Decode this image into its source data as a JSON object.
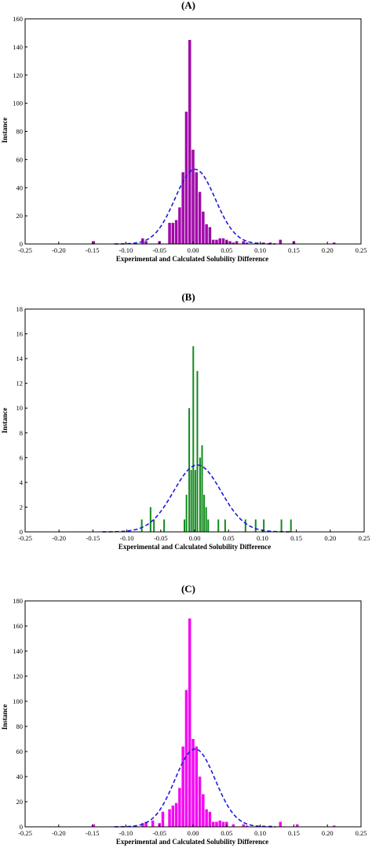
{
  "chart_data": [
    {
      "type": "bar",
      "panel_label": "(A)",
      "xlabel": "Experimental and Calculated Solubility Difference",
      "ylabel": "Instance",
      "xlim": [
        -0.25,
        0.25
      ],
      "ylim": [
        0,
        160
      ],
      "x_ticks": [
        "-0.25",
        "-0.20",
        "-0.15",
        "-0.10",
        "-0.05",
        "0.00",
        "0.05",
        "0.10",
        "0.15",
        "0.20",
        "0.25"
      ],
      "y_ticks": [
        "0",
        "20",
        "40",
        "60",
        "80",
        "100",
        "120",
        "140",
        "160"
      ],
      "bar_color": "#a00aa8",
      "fit_color": "#1a1adc",
      "bin_width": 0.005,
      "bars": [
        {
          "x": -0.148,
          "value": 2
        },
        {
          "x": -0.075,
          "value": 4
        },
        {
          "x": -0.07,
          "value": 2
        },
        {
          "x": -0.05,
          "value": 2
        },
        {
          "x": -0.035,
          "value": 15
        },
        {
          "x": -0.03,
          "value": 15
        },
        {
          "x": -0.025,
          "value": 17
        },
        {
          "x": -0.02,
          "value": 26
        },
        {
          "x": -0.015,
          "value": 51
        },
        {
          "x": -0.01,
          "value": 94
        },
        {
          "x": -0.005,
          "value": 145
        },
        {
          "x": 0.0,
          "value": 67
        },
        {
          "x": 0.005,
          "value": 51
        },
        {
          "x": 0.01,
          "value": 37
        },
        {
          "x": 0.015,
          "value": 23
        },
        {
          "x": 0.02,
          "value": 14
        },
        {
          "x": 0.025,
          "value": 12
        },
        {
          "x": 0.03,
          "value": 3
        },
        {
          "x": 0.035,
          "value": 3
        },
        {
          "x": 0.04,
          "value": 4
        },
        {
          "x": 0.045,
          "value": 4
        },
        {
          "x": 0.05,
          "value": 3
        },
        {
          "x": 0.055,
          "value": 2
        },
        {
          "x": 0.06,
          "value": 1
        },
        {
          "x": 0.065,
          "value": 2
        },
        {
          "x": 0.075,
          "value": 2
        },
        {
          "x": 0.08,
          "value": 1
        },
        {
          "x": 0.095,
          "value": 1
        },
        {
          "x": 0.105,
          "value": 1
        },
        {
          "x": 0.115,
          "value": 1
        },
        {
          "x": 0.13,
          "value": 3
        },
        {
          "x": 0.15,
          "value": 2
        },
        {
          "x": 0.21,
          "value": 1
        }
      ],
      "fit_curve": {
        "style": "dashed",
        "peak": 53,
        "mean": 0.003,
        "sd": 0.03
      }
    },
    {
      "type": "bar",
      "panel_label": "(B)",
      "xlabel": "Experimental and Calculated Solubility Difference",
      "ylabel": "Instance",
      "xlim": [
        -0.25,
        0.25
      ],
      "ylim": [
        0,
        18
      ],
      "x_ticks": [
        "-0.25",
        "-0.20",
        "-0.15",
        "-0.10",
        "-0.05",
        "0.00",
        "0.05",
        "0.10",
        "0.15",
        "0.20",
        "0.25"
      ],
      "y_ticks": [
        "0",
        "2",
        "4",
        "6",
        "8",
        "10",
        "12",
        "14",
        "16",
        "18"
      ],
      "bar_color": "#128a1e",
      "fit_color": "#1a1adc",
      "bin_width": 0.0025,
      "bars": [
        {
          "x": -0.078,
          "value": 1
        },
        {
          "x": -0.065,
          "value": 2
        },
        {
          "x": -0.06,
          "value": 1
        },
        {
          "x": -0.045,
          "value": 1
        },
        {
          "x": -0.015,
          "value": 1
        },
        {
          "x": -0.012,
          "value": 3
        },
        {
          "x": -0.008,
          "value": 10
        },
        {
          "x": -0.005,
          "value": 5
        },
        {
          "x": -0.002,
          "value": 15
        },
        {
          "x": 0.001,
          "value": 5
        },
        {
          "x": 0.004,
          "value": 13
        },
        {
          "x": 0.008,
          "value": 6
        },
        {
          "x": 0.011,
          "value": 7
        },
        {
          "x": 0.014,
          "value": 3
        },
        {
          "x": 0.017,
          "value": 2
        },
        {
          "x": 0.02,
          "value": 1
        },
        {
          "x": 0.035,
          "value": 1
        },
        {
          "x": 0.045,
          "value": 1
        },
        {
          "x": 0.075,
          "value": 1
        },
        {
          "x": 0.09,
          "value": 1
        },
        {
          "x": 0.102,
          "value": 1
        },
        {
          "x": 0.128,
          "value": 1
        },
        {
          "x": 0.142,
          "value": 1
        }
      ],
      "fit_curve": {
        "style": "dashed",
        "peak": 5.4,
        "mean": 0.004,
        "sd": 0.035
      }
    },
    {
      "type": "bar",
      "panel_label": "(C)",
      "xlabel": "Experimental and Calculated Solubility Difference",
      "ylabel": "Instance",
      "xlim": [
        -0.25,
        0.25
      ],
      "ylim": [
        0,
        180
      ],
      "x_ticks": [
        "-0.25",
        "-0.20",
        "-0.15",
        "-0.10",
        "-0.05",
        "0.00",
        "0.05",
        "0.10",
        "0.15",
        "0.20",
        "0.25"
      ],
      "y_ticks": [
        "0",
        "20",
        "40",
        "60",
        "80",
        "100",
        "120",
        "140",
        "160",
        "180"
      ],
      "bar_color": "#f20af2",
      "fit_color": "#1a1adc",
      "bin_width": 0.005,
      "bars": [
        {
          "x": -0.148,
          "value": 2
        },
        {
          "x": -0.075,
          "value": 3
        },
        {
          "x": -0.07,
          "value": 4
        },
        {
          "x": -0.06,
          "value": 5
        },
        {
          "x": -0.05,
          "value": 3
        },
        {
          "x": -0.045,
          "value": 12
        },
        {
          "x": -0.035,
          "value": 14
        },
        {
          "x": -0.03,
          "value": 17
        },
        {
          "x": -0.025,
          "value": 19
        },
        {
          "x": -0.02,
          "value": 31
        },
        {
          "x": -0.015,
          "value": 64
        },
        {
          "x": -0.01,
          "value": 109
        },
        {
          "x": -0.005,
          "value": 166
        },
        {
          "x": 0.0,
          "value": 70
        },
        {
          "x": 0.005,
          "value": 64
        },
        {
          "x": 0.01,
          "value": 40
        },
        {
          "x": 0.015,
          "value": 26
        },
        {
          "x": 0.02,
          "value": 14
        },
        {
          "x": 0.025,
          "value": 12
        },
        {
          "x": 0.03,
          "value": 4
        },
        {
          "x": 0.035,
          "value": 4
        },
        {
          "x": 0.04,
          "value": 5
        },
        {
          "x": 0.045,
          "value": 4
        },
        {
          "x": 0.05,
          "value": 4
        },
        {
          "x": 0.06,
          "value": 2
        },
        {
          "x": 0.075,
          "value": 2
        },
        {
          "x": 0.08,
          "value": 1
        },
        {
          "x": 0.095,
          "value": 1
        },
        {
          "x": 0.105,
          "value": 1
        },
        {
          "x": 0.115,
          "value": 1
        },
        {
          "x": 0.13,
          "value": 4
        },
        {
          "x": 0.155,
          "value": 2
        },
        {
          "x": 0.21,
          "value": 1
        }
      ],
      "fit_curve": {
        "style": "dashed",
        "peak": 62,
        "mean": 0.003,
        "sd": 0.03
      }
    }
  ]
}
